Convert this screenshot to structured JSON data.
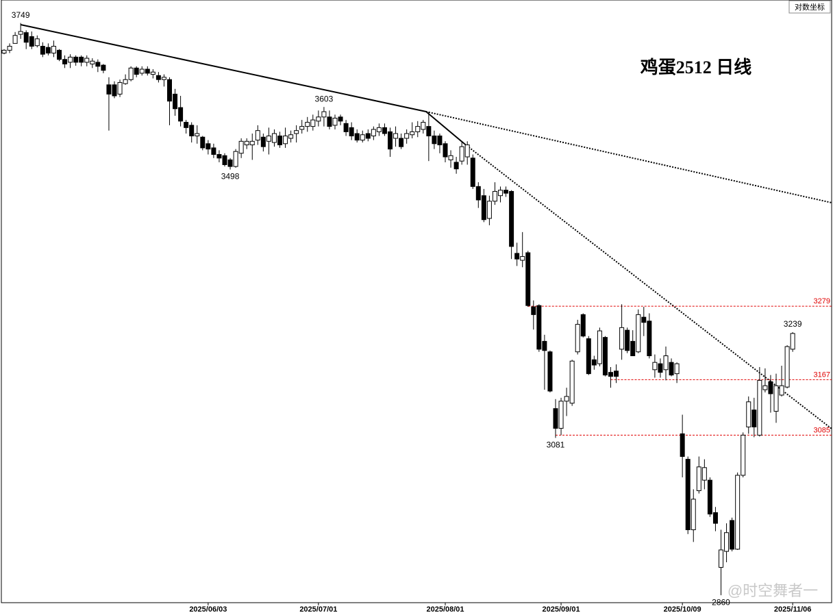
{
  "chart_data": {
    "type": "candlestick",
    "title": "鸡蛋2512 日线",
    "scale_note": "对数坐标",
    "log_scale": true,
    "ylim": [
      2850,
      3790
    ],
    "up_color": "#ffffff",
    "down_color": "#000000",
    "level_color": "#e00000",
    "levels": [
      3279,
      3167,
      3085
    ],
    "annotations": [
      3749,
      3603,
      3498,
      3081,
      3239,
      2860
    ],
    "categories": [
      null,
      null,
      null,
      null,
      null,
      null,
      null,
      null,
      null,
      null,
      null,
      null,
      null,
      null,
      null,
      null,
      null,
      null,
      null,
      null,
      null,
      null,
      null,
      null,
      null,
      null,
      null,
      null,
      null,
      null,
      null,
      null,
      null,
      null,
      null,
      null,
      null,
      "2025/06/03",
      null,
      null,
      null,
      null,
      null,
      null,
      null,
      null,
      null,
      null,
      null,
      null,
      null,
      null,
      null,
      null,
      null,
      null,
      null,
      "2025/07/01",
      null,
      null,
      null,
      null,
      null,
      null,
      null,
      null,
      null,
      null,
      null,
      null,
      null,
      null,
      null,
      null,
      null,
      null,
      null,
      null,
      null,
      null,
      "2025/08/01",
      null,
      null,
      null,
      null,
      null,
      null,
      null,
      null,
      null,
      null,
      null,
      null,
      null,
      null,
      null,
      null,
      null,
      null,
      null,
      null,
      "2025/09/01",
      null,
      null,
      null,
      null,
      null,
      null,
      null,
      null,
      null,
      null,
      null,
      null,
      null,
      null,
      null,
      null,
      null,
      null,
      null,
      null,
      null,
      "2025/10/09",
      null,
      null,
      null,
      null,
      null,
      null,
      null,
      null,
      null,
      null,
      null,
      null,
      null,
      null,
      null,
      null,
      null,
      null,
      null,
      "2025/11/06"
    ],
    "open": [
      3696,
      3701,
      3713,
      3729,
      3732,
      3725,
      3709,
      3708,
      3706,
      3696,
      3701,
      3685,
      3680,
      3689,
      3689,
      3680,
      3677,
      3680,
      3675,
      3641,
      3641,
      3625,
      3643,
      3650,
      3670,
      3661,
      3668,
      3659,
      3657,
      3650,
      3650,
      3625,
      3602,
      3577,
      3572,
      3554,
      3552,
      3541,
      3534,
      3523,
      3521,
      3514,
      3503,
      3525,
      3539,
      3539,
      3547,
      3552,
      3545,
      3543,
      3554,
      3541,
      3550,
      3558,
      3565,
      3570,
      3570,
      3579,
      3586,
      3586,
      3572,
      3586,
      3575,
      3568,
      3558,
      3547,
      3558,
      3554,
      3561,
      3568,
      3561,
      3550,
      3550,
      3550,
      3556,
      3561,
      3565,
      3570,
      3554,
      3554,
      3541,
      3514,
      3510,
      3512,
      3519,
      3517,
      3470,
      3455,
      3418,
      3446,
      3455,
      3464,
      3462,
      3362,
      3351,
      3363,
      3278,
      3280,
      3225,
      3209,
      3124,
      3095,
      3135,
      3132,
      3209,
      3266,
      3229,
      3197,
      3191,
      3231,
      3178,
      3180,
      3213,
      3242,
      3225,
      3209,
      3262,
      3256,
      3182,
      3191,
      3182,
      3193,
      3176,
      3087,
      3050,
      2950,
      3005,
      3020,
      3020,
      2974,
      2898,
      2920,
      2963,
      2923,
      3027,
      3097,
      3122,
      3085,
      3152,
      3164,
      3120,
      3144,
      3156,
      3213
    ],
    "high": [
      3703,
      3713,
      3733,
      3749,
      3736,
      3734,
      3727,
      3715,
      3713,
      3718,
      3703,
      3692,
      3694,
      3692,
      3692,
      3692,
      3687,
      3685,
      3677,
      3654,
      3647,
      3650,
      3659,
      3673,
      3673,
      3673,
      3673,
      3668,
      3663,
      3659,
      3654,
      3634,
      3622,
      3581,
      3577,
      3572,
      3554,
      3547,
      3541,
      3530,
      3525,
      3517,
      3532,
      3550,
      3550,
      3558,
      3572,
      3558,
      3568,
      3565,
      3561,
      3568,
      3563,
      3572,
      3581,
      3586,
      3590,
      3597,
      3603,
      3597,
      3590,
      3590,
      3581,
      3577,
      3565,
      3563,
      3565,
      3570,
      3575,
      3575,
      3568,
      3570,
      3558,
      3565,
      3577,
      3579,
      3581,
      3595,
      3563,
      3558,
      3545,
      3530,
      3519,
      3543,
      3545,
      3523,
      3477,
      3466,
      3455,
      3477,
      3470,
      3470,
      3464,
      3379,
      3396,
      3366,
      3288,
      3282,
      3235,
      3211,
      3138,
      3140,
      3155,
      3197,
      3258,
      3268,
      3233,
      3203,
      3246,
      3233,
      3186,
      3190,
      3282,
      3246,
      3242,
      3274,
      3278,
      3268,
      3205,
      3199,
      3217,
      3199,
      3193,
      3115,
      3054,
      3007,
      3054,
      3050,
      3024,
      2982,
      2950,
      2959,
      2967,
      3031,
      3089,
      3142,
      3140,
      3186,
      3184,
      3174,
      3176,
      3188,
      3219,
      3239
    ],
    "low": [
      3694,
      3696,
      3713,
      3721,
      3703,
      3703,
      3706,
      3689,
      3692,
      3689,
      3682,
      3670,
      3670,
      3674,
      3673,
      3673,
      3670,
      3663,
      3661,
      3563,
      3618,
      3620,
      3641,
      3647,
      3654,
      3657,
      3657,
      3652,
      3645,
      3638,
      3572,
      3588,
      3570,
      3558,
      3543,
      3541,
      3530,
      3523,
      3517,
      3510,
      3503,
      3498,
      3501,
      3517,
      3532,
      3514,
      3539,
      3528,
      3523,
      3536,
      3534,
      3534,
      3543,
      3543,
      3558,
      3561,
      3563,
      3570,
      3570,
      3565,
      3565,
      3572,
      3554,
      3547,
      3543,
      3543,
      3545,
      3547,
      3554,
      3554,
      3519,
      3536,
      3532,
      3541,
      3550,
      3552,
      3558,
      3512,
      3532,
      3525,
      3510,
      3501,
      3491,
      3506,
      3506,
      3466,
      3435,
      3412,
      3407,
      3440,
      3444,
      3453,
      3353,
      3342,
      3340,
      3278,
      3243,
      3209,
      3152,
      3148,
      3081,
      3085,
      3113,
      3128,
      3205,
      3231,
      3174,
      3182,
      3187,
      3172,
      3155,
      3162,
      3197,
      3207,
      3203,
      3207,
      3233,
      3199,
      3170,
      3170,
      3166,
      3172,
      3162,
      3024,
      2944,
      2933,
      3001,
      3007,
      2968,
      2948,
      2860,
      2905,
      2920,
      2922,
      3024,
      3087,
      3082,
      3083,
      3148,
      3118,
      3103,
      3142,
      3154,
      3209
    ],
    "close": [
      3701,
      3708,
      3727,
      3734,
      3715,
      3708,
      3721,
      3694,
      3696,
      3708,
      3685,
      3677,
      3689,
      3680,
      3680,
      3687,
      3682,
      3673,
      3666,
      3625,
      3622,
      3645,
      3650,
      3670,
      3659,
      3668,
      3661,
      3663,
      3650,
      3654,
      3613,
      3600,
      3579,
      3568,
      3554,
      3558,
      3534,
      3532,
      3523,
      3517,
      3506,
      3503,
      3528,
      3545,
      3545,
      3545,
      3563,
      3536,
      3554,
      3558,
      3539,
      3554,
      3556,
      3563,
      3570,
      3577,
      3581,
      3586,
      3595,
      3570,
      3584,
      3579,
      3561,
      3554,
      3547,
      3556,
      3550,
      3565,
      3568,
      3558,
      3532,
      3558,
      3536,
      3558,
      3561,
      3570,
      3577,
      3554,
      3541,
      3539,
      3519,
      3521,
      3499,
      3536,
      3539,
      3470,
      3448,
      3416,
      3446,
      3462,
      3464,
      3459,
      3373,
      3353,
      3357,
      3280,
      3266,
      3213,
      3211,
      3150,
      3095,
      3135,
      3142,
      3195,
      3251,
      3233,
      3176,
      3189,
      3241,
      3174,
      3172,
      3172,
      3246,
      3211,
      3203,
      3266,
      3254,
      3203,
      3193,
      3178,
      3203,
      3174,
      3191,
      3054,
      2950,
      2993,
      3039,
      3038,
      2972,
      2959,
      2922,
      2946,
      2923,
      3027,
      3085,
      3134,
      3097,
      3166,
      3158,
      3146,
      3158,
      3158,
      3217,
      3237
    ]
  },
  "watermark": "@时空舞者一"
}
